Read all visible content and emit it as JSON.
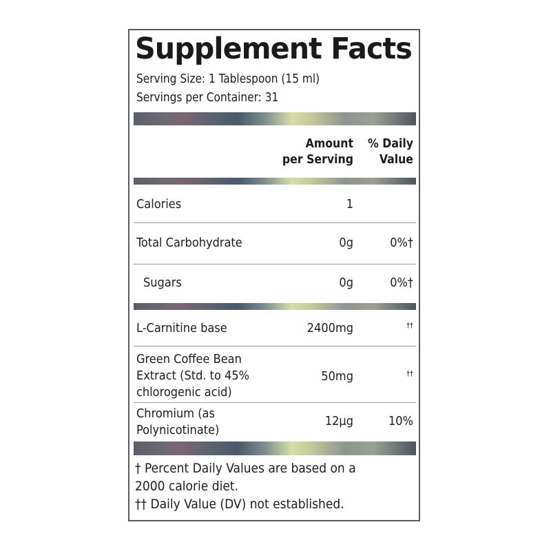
{
  "title": "Supplement Facts",
  "serving_size": "Serving Size: 1 Tablespoon (15 ml)",
  "servings_per_container": "Servings per Container: 31",
  "header": {
    "amount_line1": "Amount",
    "amount_line2": "per Serving",
    "dv_line1": "% Daily",
    "dv_line2": "Value"
  },
  "rows": [
    {
      "name": "Calories",
      "amount": "1",
      "dv": ""
    },
    {
      "name": "Total Carbohydrate",
      "amount": "0g",
      "dv": "0%†"
    },
    {
      "name": "Sugars",
      "amount": "0g",
      "dv": "0%†"
    },
    {
      "name": "L-Carnitine base",
      "amount": "2400mg",
      "dv": "††"
    },
    {
      "name_line1": "Green Coffee Bean",
      "name_line2": "Extract (Std. to 45%",
      "name_line3": "chlorogenic acid)",
      "amount": "50mg",
      "dv": "††"
    },
    {
      "name_line1": "Chromium (as",
      "name_line2": "Polynicotinate)",
      "amount": "12µg",
      "dv": "10%"
    }
  ],
  "footnotes": {
    "line1": "† Percent Daily Values are based on a",
    "line2": "2000 calorie diet.",
    "line3": "†† Daily Value (DV) not established."
  }
}
